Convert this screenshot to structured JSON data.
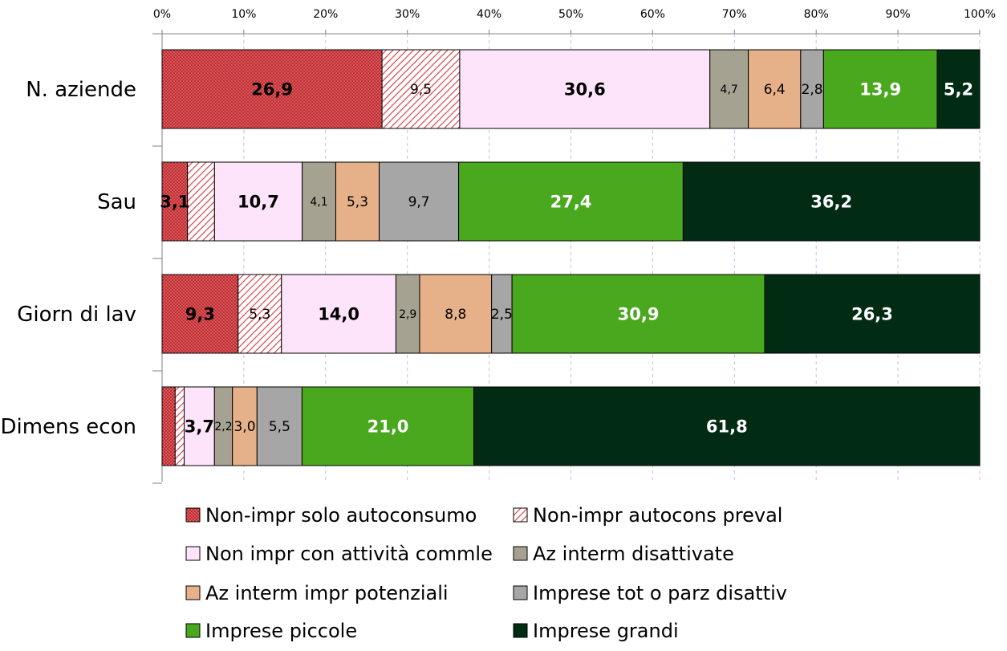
{
  "chart_data": {
    "type": "bar",
    "orientation": "horizontal",
    "stacked": true,
    "percent_stacked": true,
    "title": "",
    "xlabel": "",
    "ylabel": "",
    "xlim": [
      0,
      100
    ],
    "x_ticks": [
      "0%",
      "10%",
      "20%",
      "30%",
      "40%",
      "50%",
      "60%",
      "70%",
      "80%",
      "90%",
      "100%"
    ],
    "grid": "vertical dashed",
    "legend_position": "bottom",
    "categories": [
      "N. aziende",
      "Sau",
      "Giorn di lav",
      "Dimens econ"
    ],
    "series": [
      {
        "name": "Non-impr solo autoconsumo",
        "color": "#c0282d",
        "pattern": "dots",
        "values": [
          26.9,
          3.1,
          9.3,
          1.6
        ],
        "labels": [
          "26,9",
          "3,1",
          "9,3",
          ""
        ],
        "label_style": "bold"
      },
      {
        "name": "Non-impr autocons preval",
        "color": "#d9363e",
        "pattern": "hatch",
        "values": [
          9.5,
          3.3,
          5.3,
          1.1
        ],
        "labels": [
          "9,5",
          "",
          "5,3",
          ""
        ],
        "label_style": "normal"
      },
      {
        "name": "Non impr con attività commle",
        "color": "#fde4fa",
        "pattern": "none",
        "values": [
          30.6,
          10.7,
          14.0,
          3.7
        ],
        "labels": [
          "30,6",
          "10,7",
          "14,0",
          "3,7"
        ],
        "label_style": "bold"
      },
      {
        "name": "Az interm disattivate",
        "color": "#a6a291",
        "pattern": "none",
        "values": [
          4.7,
          4.1,
          2.9,
          2.2
        ],
        "labels": [
          "4,7",
          "4,1",
          "2,9",
          "2,2"
        ],
        "label_style": "small"
      },
      {
        "name": "Az interm impr potenziali",
        "color": "#e6b088",
        "pattern": "none",
        "values": [
          6.4,
          5.3,
          8.8,
          3.0
        ],
        "labels": [
          "6,4",
          "5,3",
          "8,8",
          "3,0"
        ],
        "label_style": "normal"
      },
      {
        "name": "Imprese tot o parz disattiv",
        "color": "#a6a6a6",
        "pattern": "none",
        "values": [
          2.8,
          9.7,
          2.5,
          5.5
        ],
        "labels": [
          "2,8",
          "9,7",
          "2,5",
          "5,5"
        ],
        "label_style": "normal"
      },
      {
        "name": "Imprese piccole",
        "color": "#4aa81e",
        "pattern": "none",
        "values": [
          13.9,
          27.4,
          30.9,
          21.0
        ],
        "labels": [
          "13,9",
          "27,4",
          "30,9",
          "21,0"
        ],
        "label_style": "bold-white"
      },
      {
        "name": "Imprese grandi",
        "color": "#022b14",
        "pattern": "none",
        "values": [
          5.2,
          36.2,
          26.3,
          61.8
        ],
        "labels": [
          "5,2",
          "36,2",
          "26,3",
          "61,8"
        ],
        "label_style": "bold-white"
      }
    ]
  }
}
